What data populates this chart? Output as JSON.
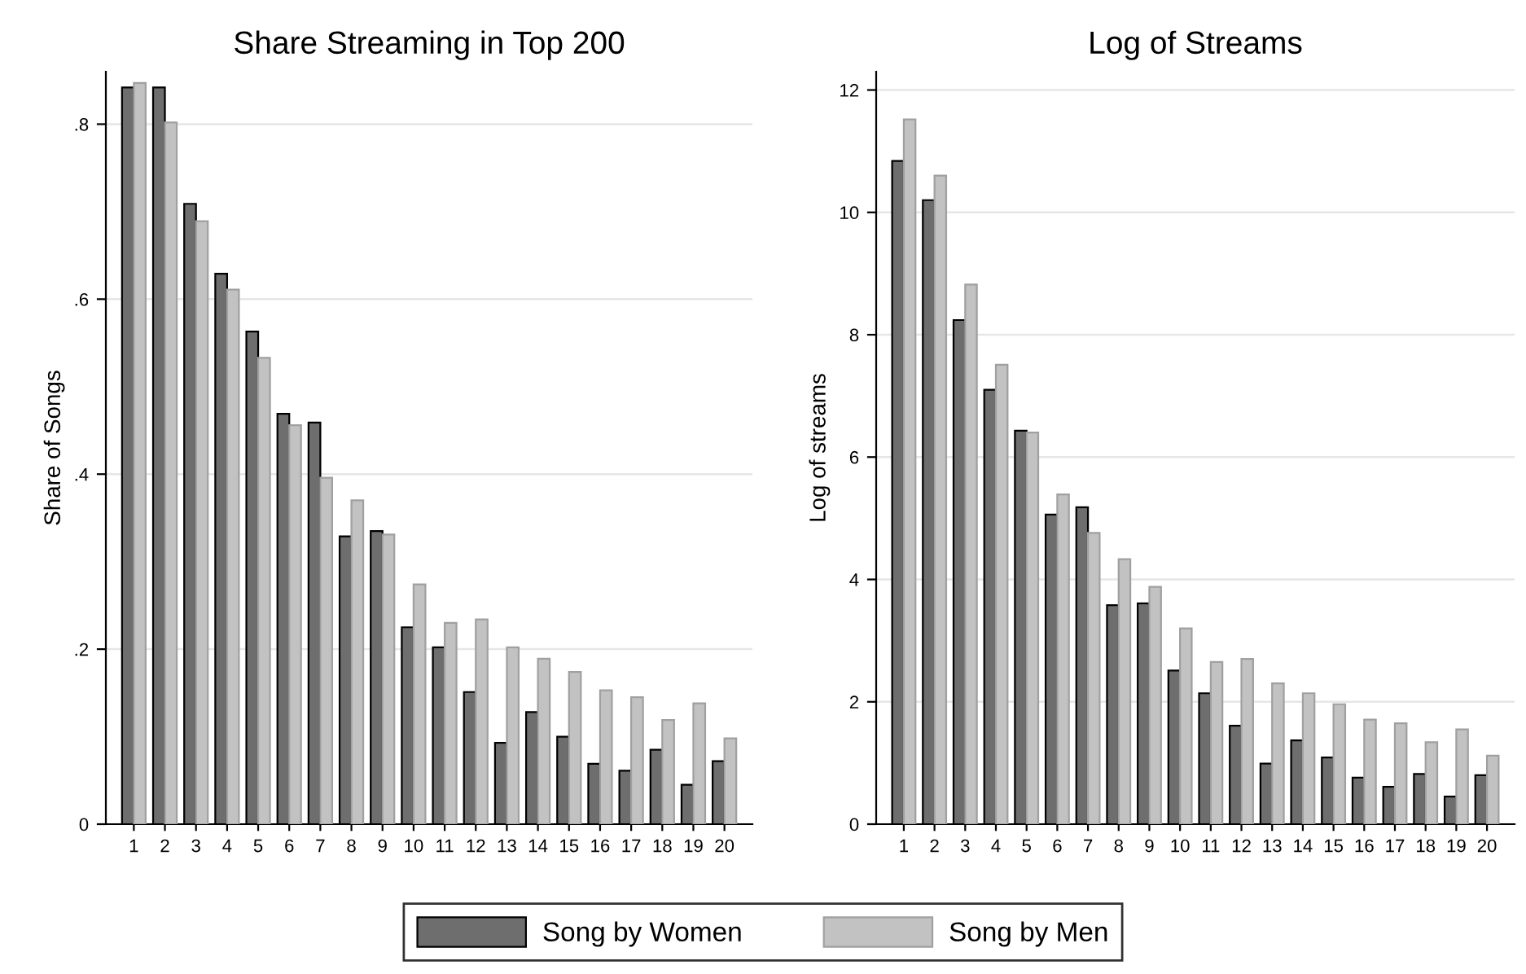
{
  "chart_data": [
    {
      "type": "bar",
      "title": "Share Streaming in Top 200",
      "ylabel": "Share of Songs",
      "categories": [
        "1",
        "2",
        "3",
        "4",
        "5",
        "6",
        "7",
        "8",
        "9",
        "10",
        "11",
        "12",
        "13",
        "14",
        "15",
        "16",
        "17",
        "18",
        "19",
        "20"
      ],
      "series": [
        {
          "name": "Song by Women",
          "color": "#6e6e6e",
          "values": [
            0.842,
            0.842,
            0.709,
            0.629,
            0.563,
            0.469,
            0.459,
            0.329,
            0.335,
            0.225,
            0.202,
            0.151,
            0.093,
            0.128,
            0.1,
            0.069,
            0.061,
            0.085,
            0.045,
            0.072
          ]
        },
        {
          "name": "Song by Men",
          "color": "#c2c2c2",
          "values": [
            0.847,
            0.802,
            0.689,
            0.611,
            0.533,
            0.456,
            0.396,
            0.37,
            0.331,
            0.274,
            0.23,
            0.234,
            0.202,
            0.189,
            0.174,
            0.153,
            0.145,
            0.119,
            0.138,
            0.098
          ]
        }
      ],
      "ylim": [
        0,
        0.86
      ],
      "yticks": [
        0,
        {
          "value": 0.2,
          "label": ".2"
        },
        {
          "value": 0.4,
          "label": ".4"
        },
        {
          "value": 0.6,
          "label": ".6"
        },
        {
          "value": 0.8,
          "label": ".8"
        }
      ],
      "grid": "y",
      "legend": "bottom"
    },
    {
      "type": "bar",
      "title": "Log of Streams",
      "ylabel": "Log of streams",
      "categories": [
        "1",
        "2",
        "3",
        "4",
        "5",
        "6",
        "7",
        "8",
        "9",
        "10",
        "11",
        "12",
        "13",
        "14",
        "15",
        "16",
        "17",
        "18",
        "19",
        "20"
      ],
      "series": [
        {
          "color": "#6e6e6e",
          "values": [
            10.84,
            10.2,
            8.24,
            7.1,
            6.43,
            5.06,
            5.18,
            3.58,
            3.61,
            2.51,
            2.14,
            1.61,
            0.99,
            1.37,
            1.09,
            0.76,
            0.61,
            0.82,
            0.45,
            0.8
          ]
        },
        {
          "color": "#c2c2c2",
          "values": [
            11.52,
            10.6,
            8.82,
            7.51,
            6.4,
            5.39,
            4.76,
            4.33,
            3.88,
            3.2,
            2.65,
            2.7,
            2.3,
            2.14,
            1.96,
            1.71,
            1.65,
            1.34,
            1.55,
            1.12
          ]
        }
      ],
      "ylim": [
        0,
        12.3
      ],
      "yticks": [
        0,
        2,
        4,
        6,
        8,
        10,
        12
      ],
      "grid": "y"
    }
  ]
}
